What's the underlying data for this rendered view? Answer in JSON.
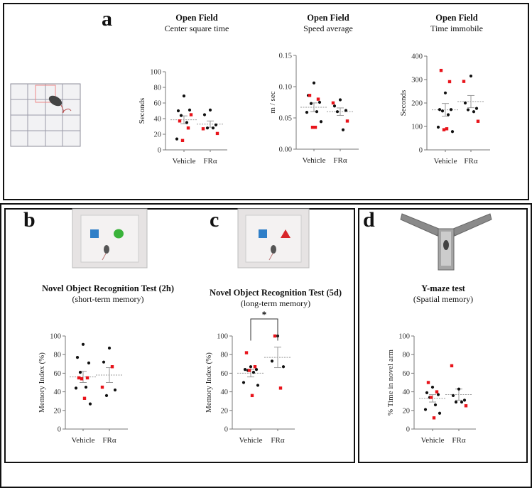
{
  "panels": {
    "a": {
      "letter": "a"
    },
    "b": {
      "letter": "b"
    },
    "c": {
      "letter": "c"
    },
    "d": {
      "letter": "d"
    }
  },
  "colors": {
    "black_group": "#111111",
    "red_group": "#e8141b",
    "mean_line": "#9a9a9a",
    "axis": "#777777"
  },
  "chart_data": [
    {
      "id": "a1",
      "type": "scatter",
      "title": "Open Field",
      "subtitle": "Center square time",
      "ylabel": "Seconds",
      "ylim": [
        0,
        100
      ],
      "yticks": [
        "0",
        "20",
        "40",
        "60",
        "80",
        "100"
      ],
      "categories": [
        "Vehicle",
        "FRα"
      ],
      "series": [
        {
          "category": "Vehicle",
          "black": [
            69,
            50,
            51,
            44,
            35,
            14
          ],
          "red": [
            45,
            37,
            28,
            12
          ],
          "mean": 38.5,
          "sem": 5
        },
        {
          "category": "FRα",
          "black": [
            51,
            45,
            32,
            28,
            28
          ],
          "red": [
            27,
            21
          ],
          "mean": 33,
          "sem": 4
        }
      ]
    },
    {
      "id": "a2",
      "type": "scatter",
      "title": "Open Field",
      "subtitle": "Speed average",
      "ylabel": "m / sec",
      "ylim": [
        0,
        0.15
      ],
      "yticks": [
        "0.00",
        "0.05",
        "0.10",
        "0.15"
      ],
      "categories": [
        "Vehicle",
        "FRα"
      ],
      "series": [
        {
          "category": "Vehicle",
          "black": [
            0.106,
            0.086,
            0.075,
            0.073,
            0.06,
            0.059,
            0.044
          ],
          "red": [
            0.086,
            0.08,
            0.035,
            0.035
          ],
          "mean": 0.067,
          "sem": 0.007
        },
        {
          "category": "FRα",
          "black": [
            0.079,
            0.069,
            0.062,
            0.06,
            0.031
          ],
          "red": [
            0.074,
            0.045
          ],
          "mean": 0.06,
          "sem": 0.006
        }
      ]
    },
    {
      "id": "a3",
      "type": "scatter",
      "title": "Open Field",
      "subtitle": "Time immobile",
      "ylabel": "Seconds",
      "ylim": [
        0,
        400
      ],
      "yticks": [
        "0",
        "100",
        "200",
        "300",
        "400"
      ],
      "categories": [
        "Vehicle",
        "FRα"
      ],
      "series": [
        {
          "category": "Vehicle",
          "black": [
            243,
            172,
            172,
            166,
            150,
            97,
            78
          ],
          "red": [
            339,
            291,
            86,
            90
          ],
          "mean": 171,
          "sem": 27
        },
        {
          "category": "FRα",
          "black": [
            315,
            200,
            177,
            171,
            163
          ],
          "red": [
            292,
            122
          ],
          "mean": 206,
          "sem": 26
        }
      ]
    },
    {
      "id": "b",
      "type": "scatter",
      "title": "Novel Object Recognition Test (2h)",
      "subtitle": "(short-term memory)",
      "ylabel": "Memory Index (%)",
      "ylim": [
        0,
        100
      ],
      "yticks": [
        "0",
        "20",
        "40",
        "60",
        "80",
        "100"
      ],
      "categories": [
        "Vehicle",
        "FRα"
      ],
      "series": [
        {
          "category": "Vehicle",
          "black": [
            91,
            77,
            71,
            61,
            45,
            44,
            27
          ],
          "red": [
            55,
            55,
            54,
            33
          ],
          "mean": 56,
          "sem": 6
        },
        {
          "category": "FRα",
          "black": [
            87,
            72,
            42,
            36
          ],
          "red": [
            67,
            45
          ],
          "mean": 58,
          "sem": 8
        }
      ]
    },
    {
      "id": "c",
      "type": "scatter",
      "title": "Novel Object Recognition Test (5d)",
      "subtitle": "(long-term memory)",
      "ylabel": "Memory Index (%)",
      "ylim": [
        0,
        100
      ],
      "yticks": [
        "0",
        "20",
        "40",
        "60",
        "80",
        "100"
      ],
      "categories": [
        "Vehicle",
        "FRα"
      ],
      "significance": "*",
      "series": [
        {
          "category": "Vehicle",
          "black": [
            67,
            64,
            64,
            63,
            61,
            50,
            47
          ],
          "red": [
            82,
            67,
            63,
            36
          ],
          "mean": 60,
          "sem": 4
        },
        {
          "category": "FRα",
          "black": [
            100,
            73,
            67
          ],
          "red": [
            100,
            44
          ],
          "mean": 77,
          "sem": 11
        }
      ]
    },
    {
      "id": "d",
      "type": "scatter",
      "title": "Y-maze test",
      "subtitle": "(Spatial memory)",
      "ylabel": "% Time in novel arm",
      "ylim": [
        0,
        100
      ],
      "yticks": [
        "0",
        "20",
        "40",
        "60",
        "80",
        "100"
      ],
      "categories": [
        "Vehicle",
        "FRα"
      ],
      "series": [
        {
          "category": "Vehicle",
          "black": [
            45,
            39,
            37,
            34,
            26,
            21,
            17
          ],
          "red": [
            50,
            40,
            34,
            12
          ],
          "mean": 33,
          "sem": 4
        },
        {
          "category": "FRα",
          "black": [
            43,
            36,
            31,
            29,
            29
          ],
          "red": [
            68,
            25
          ],
          "mean": 37,
          "sem": 6
        }
      ]
    }
  ]
}
